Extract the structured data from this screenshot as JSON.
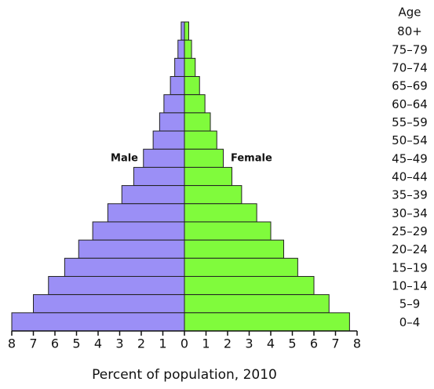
{
  "chart_data": {
    "type": "pyramid",
    "x_label": "Percent of population, 2010",
    "category_label": "Age",
    "categories": [
      "80+",
      "75–79",
      "70–74",
      "65–69",
      "60–64",
      "55–59",
      "50–54",
      "45–49",
      "40–44",
      "35–39",
      "30–34",
      "25–29",
      "20–24",
      "15–19",
      "10–14",
      "5–9",
      "0–4"
    ],
    "series": [
      {
        "name": "Male",
        "color": "#9b8ff6",
        "side": "left",
        "values": [
          0.15,
          0.3,
          0.45,
          0.65,
          0.95,
          1.15,
          1.45,
          1.9,
          2.35,
          2.9,
          3.55,
          4.25,
          4.9,
          5.55,
          6.3,
          7.0,
          8.0
        ]
      },
      {
        "name": "Female",
        "color": "#80fb3c",
        "side": "right",
        "values": [
          0.2,
          0.33,
          0.5,
          0.7,
          0.95,
          1.2,
          1.5,
          1.8,
          2.2,
          2.65,
          3.35,
          4.0,
          4.6,
          5.25,
          6.0,
          6.7,
          7.65
        ]
      }
    ],
    "xlim": [
      -8,
      8
    ],
    "xticks": [
      {
        "value": -8,
        "label": "8"
      },
      {
        "value": -7,
        "label": "7"
      },
      {
        "value": -6,
        "label": "6"
      },
      {
        "value": -5,
        "label": "5"
      },
      {
        "value": -4,
        "label": "4"
      },
      {
        "value": -3,
        "label": "3"
      },
      {
        "value": -2,
        "label": "2"
      },
      {
        "value": -1,
        "label": "1"
      },
      0,
      1,
      2,
      3,
      4,
      5,
      6,
      7,
      8
    ]
  }
}
